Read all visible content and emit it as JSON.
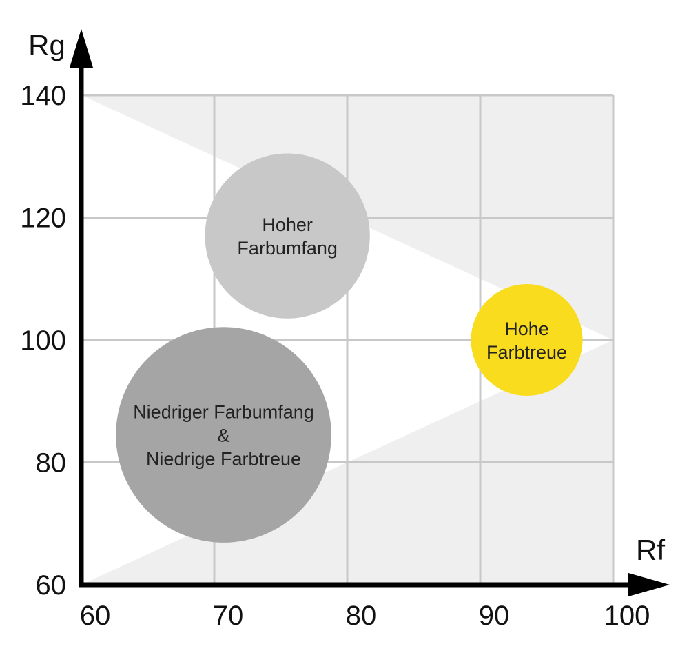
{
  "chart_data": {
    "type": "bubble",
    "xlabel": "Rf",
    "ylabel": "Rg",
    "xlim": [
      60,
      100
    ],
    "ylim": [
      60,
      140
    ],
    "x_ticks": [
      60,
      70,
      80,
      90,
      100
    ],
    "y_ticks": [
      60,
      80,
      100,
      120,
      140
    ],
    "x_tick_labels": [
      "60",
      "70",
      "80",
      "90",
      "100"
    ],
    "y_tick_labels": [
      "60",
      "80",
      "100",
      "120",
      "140"
    ],
    "grid": true,
    "gamut_region": {
      "points": [
        [
          60,
          140
        ],
        [
          100,
          100
        ],
        [
          60,
          60
        ]
      ],
      "color": "#ffffff",
      "background_color": "#efefef"
    },
    "bubbles": [
      {
        "x": 75.5,
        "y": 117,
        "r": 6.2,
        "label": [
          "Hoher",
          "Farbumfang"
        ],
        "color": "#c8c8c8"
      },
      {
        "x": 70.7,
        "y": 84.5,
        "r": 8.1,
        "label": [
          "Niedriger Farbumfang",
          "&",
          "Niedrige Farbtreue"
        ],
        "color": "#a5a5a5"
      },
      {
        "x": 93.5,
        "y": 100,
        "r": 4.2,
        "label": [
          "Hohe",
          "Farbtreue"
        ],
        "color": "#f9dc1e"
      }
    ]
  }
}
